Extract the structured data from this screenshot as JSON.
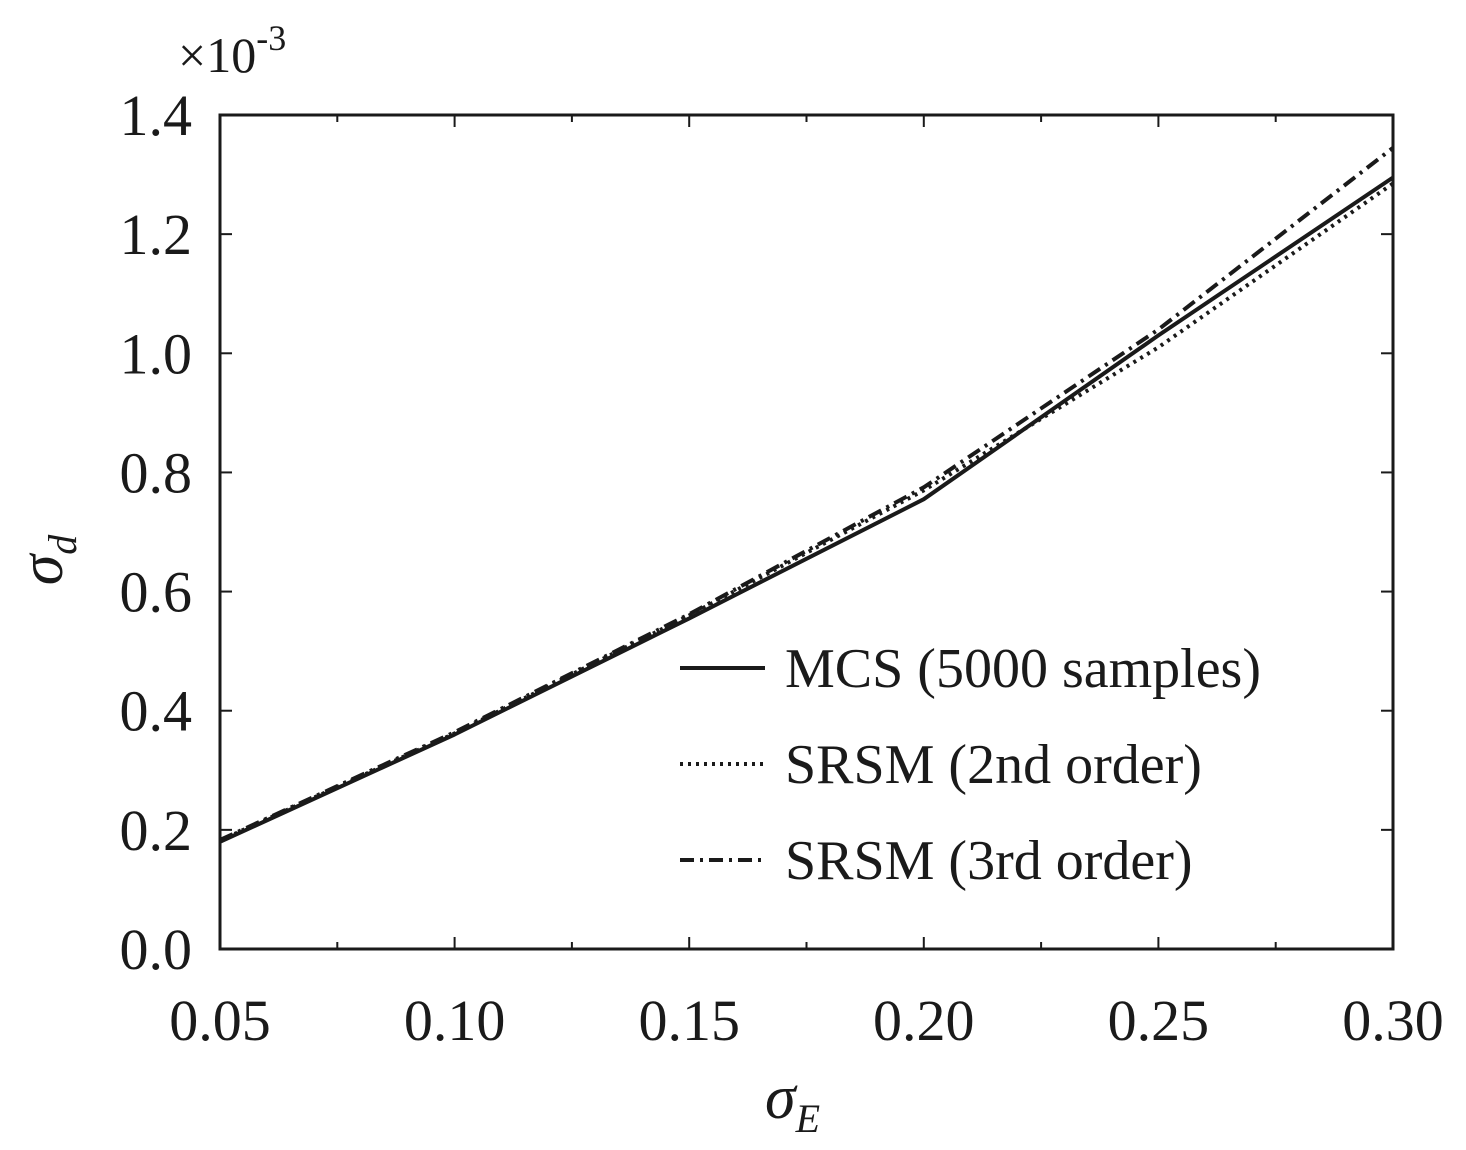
{
  "chart_data": {
    "type": "line",
    "title": "",
    "xlabel": {
      "symbol": "σ",
      "subscript": "E"
    },
    "ylabel": {
      "symbol": "σ",
      "subscript": "d"
    },
    "y_multiplier": {
      "base": "×10",
      "exponent": "-3"
    },
    "xlim": [
      0.05,
      0.3
    ],
    "ylim": [
      0.0,
      1.4
    ],
    "x_ticks": [
      0.05,
      0.1,
      0.15,
      0.2,
      0.25,
      0.3
    ],
    "x_tick_labels": [
      "0.05",
      "0.10",
      "0.15",
      "0.20",
      "0.25",
      "0.30"
    ],
    "y_ticks": [
      0.0,
      0.2,
      0.4,
      0.6,
      0.8,
      1.0,
      1.2,
      1.4
    ],
    "y_tick_labels": [
      "0.0",
      "0.2",
      "0.4",
      "0.6",
      "0.8",
      "1.0",
      "1.2",
      "1.4"
    ],
    "grid": false,
    "legend_position": "bottom-right",
    "x": [
      0.05,
      0.1,
      0.15,
      0.2,
      0.25,
      0.3
    ],
    "series": [
      {
        "name": "MCS (5000 samples)",
        "style": "solid",
        "values": [
          0.18,
          0.36,
          0.555,
          0.755,
          1.03,
          1.295
        ]
      },
      {
        "name": "SRSM (2nd order)",
        "style": "dotted",
        "values": [
          0.182,
          0.362,
          0.56,
          0.77,
          1.01,
          1.285
        ]
      },
      {
        "name": "SRSM (3rd order)",
        "style": "dashdot",
        "values": [
          0.183,
          0.364,
          0.562,
          0.775,
          1.04,
          1.345
        ]
      }
    ],
    "colors": {
      "line": "#1a1a1a",
      "axis": "#1a1a1a",
      "background": "#ffffff"
    }
  }
}
